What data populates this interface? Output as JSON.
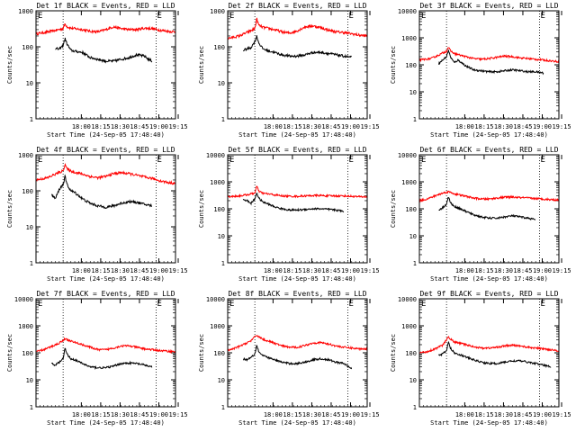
{
  "chart_data": [
    {
      "type": "line",
      "title": "Det 1f BLACK = Events, RED = LLD",
      "ylabel": "Counts/sec",
      "xlabel": "Start Time (24-Sep-05 17:48:40)",
      "yscale": "log",
      "ylim": [
        1,
        1000
      ],
      "yticks": [
        "1",
        "10",
        "100",
        "1000"
      ],
      "xticks": [
        "18:00",
        "18:15",
        "18:30",
        "18:45",
        "19:00",
        "19:15"
      ],
      "xlim": [
        -12,
        24
      ],
      "markers": [
        "E",
        "E"
      ],
      "vlines": [
        -5,
        19
      ],
      "series": [
        {
          "name": "LLD",
          "color": "#ff0000",
          "x": [
            -12,
            -8,
            -5,
            -4.5,
            -4,
            -3,
            0,
            2,
            4,
            6,
            8,
            10,
            12,
            14,
            16,
            18,
            20,
            22,
            24
          ],
          "values": [
            230,
            270,
            320,
            440,
            360,
            330,
            300,
            270,
            260,
            300,
            360,
            320,
            300,
            300,
            330,
            320,
            290,
            270,
            260
          ]
        },
        {
          "name": "Events",
          "color": "#000000",
          "x": [
            -7,
            -6,
            -5,
            -4.5,
            -4,
            -3,
            -2,
            0,
            2,
            4,
            6,
            8,
            10,
            12,
            14,
            16,
            17,
            18
          ],
          "values": [
            90,
            85,
            110,
            170,
            120,
            80,
            75,
            70,
            50,
            45,
            40,
            40,
            45,
            50,
            60,
            55,
            45,
            40
          ]
        }
      ]
    },
    {
      "type": "line",
      "title": "Det 2f BLACK = Events, RED = LLD",
      "ylabel": "Counts/sec",
      "xlabel": "Start Time (24-Sep-05 17:48:40)",
      "yscale": "log",
      "ylim": [
        1,
        1000
      ],
      "yticks": [
        "1",
        "10",
        "100",
        "1000"
      ],
      "xticks": [
        "18:00",
        "18:15",
        "18:30",
        "18:45",
        "19:00",
        "19:15"
      ],
      "xlim": [
        -12,
        24
      ],
      "markers": [
        "E",
        "E"
      ],
      "vlines": [
        -5,
        19
      ],
      "series": [
        {
          "name": "LLD",
          "color": "#ff0000",
          "x": [
            -12,
            -9,
            -6,
            -5,
            -4.5,
            -4,
            -3,
            0,
            2,
            4,
            6,
            8,
            10,
            12,
            14,
            16,
            18,
            20,
            22,
            24
          ],
          "values": [
            170,
            200,
            280,
            320,
            600,
            400,
            350,
            300,
            260,
            240,
            280,
            360,
            380,
            340,
            290,
            260,
            250,
            230,
            210,
            200
          ]
        },
        {
          "name": "Events",
          "color": "#000000",
          "x": [
            -8,
            -6,
            -5,
            -4.5,
            -4,
            -3,
            -2,
            0,
            2,
            4,
            6,
            8,
            10,
            12,
            14,
            16,
            18,
            20
          ],
          "values": [
            80,
            95,
            140,
            200,
            130,
            90,
            80,
            70,
            60,
            55,
            55,
            60,
            70,
            70,
            65,
            60,
            55,
            50
          ]
        }
      ]
    },
    {
      "type": "line",
      "title": "Det 3f BLACK = Events, RED = LLD",
      "ylabel": "Counts/sec",
      "xlabel": "Start Time (24-Sep-05 17:48:40)",
      "yscale": "log",
      "ylim": [
        1,
        10000
      ],
      "yticks": [
        "1",
        "10",
        "100",
        "1000",
        "10000"
      ],
      "xticks": [
        "18:00",
        "18:15",
        "18:30",
        "18:45",
        "19:00",
        "19:15"
      ],
      "xlim": [
        -12,
        24
      ],
      "markers": [
        "E",
        "E"
      ],
      "vlines": [
        -5,
        19
      ],
      "series": [
        {
          "name": "LLD",
          "color": "#ff0000",
          "x": [
            -12,
            -9,
            -7,
            -5,
            -4.5,
            -4,
            -3,
            0,
            2,
            4,
            6,
            8,
            10,
            12,
            14,
            16,
            18,
            20,
            22,
            24
          ],
          "values": [
            150,
            170,
            230,
            320,
            450,
            330,
            260,
            200,
            170,
            160,
            170,
            190,
            210,
            200,
            180,
            170,
            160,
            150,
            140,
            130
          ]
        },
        {
          "name": "Events",
          "color": "#000000",
          "x": [
            -7,
            -6,
            -5,
            -4.5,
            -4,
            -3,
            -2,
            0,
            2,
            4,
            6,
            8,
            10,
            12,
            14,
            16,
            18,
            20
          ],
          "values": [
            110,
            150,
            200,
            350,
            200,
            120,
            150,
            90,
            65,
            60,
            55,
            55,
            60,
            65,
            60,
            55,
            55,
            50
          ]
        }
      ]
    },
    {
      "type": "line",
      "title": "Det 4f BLACK = Events, RED = LLD",
      "ylabel": "Counts/sec",
      "xlabel": "Start Time (24-Sep-05 17:48:40)",
      "yscale": "log",
      "ylim": [
        1,
        1000
      ],
      "yticks": [
        "1",
        "10",
        "100",
        "1000"
      ],
      "xticks": [
        "18:00",
        "18:15",
        "18:30",
        "18:45",
        "19:00",
        "19:15"
      ],
      "xlim": [
        -12,
        24
      ],
      "markers": [
        "E",
        "E"
      ],
      "vlines": [
        -5,
        19
      ],
      "series": [
        {
          "name": "LLD",
          "color": "#ff0000",
          "x": [
            -12,
            -9,
            -7,
            -5,
            -4.5,
            -4,
            -3,
            0,
            2,
            4,
            6,
            8,
            10,
            12,
            14,
            16,
            18,
            20,
            22,
            24
          ],
          "values": [
            200,
            230,
            290,
            360,
            560,
            400,
            350,
            290,
            250,
            230,
            250,
            300,
            320,
            300,
            270,
            240,
            220,
            190,
            170,
            160
          ]
        },
        {
          "name": "Events",
          "color": "#000000",
          "x": [
            -8,
            -7,
            -6,
            -5,
            -4.5,
            -4,
            -3,
            -2,
            0,
            2,
            4,
            6,
            8,
            10,
            12,
            14,
            16,
            18
          ],
          "values": [
            80,
            60,
            110,
            150,
            250,
            150,
            100,
            90,
            60,
            45,
            38,
            35,
            38,
            45,
            50,
            48,
            42,
            38
          ]
        }
      ]
    },
    {
      "type": "line",
      "title": "Det 5f BLACK = Events, RED = LLD",
      "ylabel": "Counts/sec",
      "xlabel": "Start Time (24-Sep-05 17:48:40)",
      "yscale": "log",
      "ylim": [
        1,
        10000
      ],
      "yticks": [
        "1",
        "10",
        "100",
        "1000",
        "10000"
      ],
      "xticks": [
        "18:00",
        "18:15",
        "18:30",
        "18:45",
        "19:00",
        "19:15"
      ],
      "xlim": [
        -12,
        24
      ],
      "markers": [
        "E",
        "E"
      ],
      "vlines": [
        -5,
        19
      ],
      "series": [
        {
          "name": "LLD",
          "color": "#ff0000",
          "x": [
            -12,
            -9,
            -7,
            -5,
            -4.5,
            -4,
            -3,
            0,
            2,
            4,
            6,
            8,
            10,
            12,
            14,
            16,
            18,
            20,
            22,
            24
          ],
          "values": [
            280,
            300,
            330,
            380,
            700,
            450,
            380,
            330,
            300,
            290,
            290,
            300,
            310,
            310,
            300,
            300,
            300,
            290,
            280,
            280
          ]
        },
        {
          "name": "Events",
          "color": "#000000",
          "x": [
            -8,
            -7,
            -6,
            -5,
            -4.5,
            -4,
            -3,
            -2,
            0,
            2,
            4,
            6,
            8,
            10,
            12,
            14,
            16,
            18
          ],
          "values": [
            220,
            200,
            160,
            230,
            400,
            250,
            180,
            160,
            120,
            100,
            90,
            90,
            95,
            100,
            100,
            95,
            90,
            80
          ]
        }
      ]
    },
    {
      "type": "line",
      "title": "Det 6f BLACK = Events, RED = LLD",
      "ylabel": "Counts/sec",
      "xlabel": "Start Time (24-Sep-05 17:48:40)",
      "yscale": "log",
      "ylim": [
        1,
        10000
      ],
      "yticks": [
        "1",
        "10",
        "100",
        "1000",
        "10000"
      ],
      "xticks": [
        "18:00",
        "18:15",
        "18:30",
        "18:45",
        "19:00",
        "19:15"
      ],
      "xlim": [
        -12,
        24
      ],
      "markers": [
        "E",
        "E"
      ],
      "vlines": [
        -5,
        19
      ],
      "series": [
        {
          "name": "LLD",
          "color": "#ff0000",
          "x": [
            -12,
            -10,
            -8,
            -6,
            -4.5,
            -3,
            0,
            2,
            4,
            6,
            8,
            10,
            12,
            14,
            16,
            18,
            20,
            22,
            24
          ],
          "values": [
            200,
            230,
            300,
            380,
            430,
            360,
            290,
            250,
            230,
            230,
            250,
            270,
            270,
            260,
            250,
            240,
            230,
            220,
            210
          ]
        },
        {
          "name": "Events",
          "color": "#000000",
          "x": [
            -7,
            -6,
            -5,
            -4.5,
            -4,
            -3,
            -2,
            0,
            2,
            4,
            6,
            8,
            10,
            12,
            14,
            16,
            18
          ],
          "values": [
            90,
            110,
            150,
            280,
            170,
            120,
            110,
            80,
            60,
            50,
            45,
            45,
            50,
            55,
            50,
            45,
            40
          ]
        }
      ]
    },
    {
      "type": "line",
      "title": "Det 7f BLACK = Events, RED = LLD",
      "ylabel": "Counts/sec",
      "xlabel": "Start Time (24-Sep-05 17:48:40)",
      "yscale": "log",
      "ylim": [
        1,
        10000
      ],
      "yticks": [
        "1",
        "10",
        "100",
        "1000",
        "10000"
      ],
      "xticks": [
        "18:00",
        "18:15",
        "18:30",
        "18:45",
        "19:00",
        "19:15"
      ],
      "xlim": [
        -12,
        24
      ],
      "markers": [
        "E",
        "E"
      ],
      "vlines": [
        -5,
        19
      ],
      "series": [
        {
          "name": "LLD",
          "color": "#ff0000",
          "x": [
            -12,
            -10,
            -8,
            -6,
            -4.5,
            -3,
            0,
            2,
            4,
            6,
            8,
            10,
            12,
            14,
            16,
            18,
            20,
            22,
            24
          ],
          "values": [
            110,
            130,
            170,
            230,
            330,
            270,
            200,
            160,
            130,
            130,
            150,
            180,
            180,
            160,
            140,
            130,
            120,
            115,
            110
          ]
        },
        {
          "name": "Events",
          "color": "#000000",
          "x": [
            -8,
            -7,
            -6,
            -5,
            -4.5,
            -4,
            -3,
            -2,
            0,
            2,
            4,
            6,
            8,
            10,
            12,
            14,
            16,
            18
          ],
          "values": [
            40,
            35,
            45,
            60,
            150,
            90,
            60,
            55,
            40,
            30,
            28,
            28,
            32,
            40,
            42,
            40,
            35,
            30
          ]
        }
      ]
    },
    {
      "type": "line",
      "title": "Det 8f BLACK = Events, RED = LLD",
      "ylabel": "Counts/sec",
      "xlabel": "Start Time (24-Sep-05 17:48:40)",
      "yscale": "log",
      "ylim": [
        1,
        10000
      ],
      "yticks": [
        "1",
        "10",
        "100",
        "1000",
        "10000"
      ],
      "xticks": [
        "18:00",
        "18:15",
        "18:30",
        "18:45",
        "19:00",
        "19:15"
      ],
      "xlim": [
        -12,
        24
      ],
      "markers": [
        "E",
        "E"
      ],
      "vlines": [
        -5,
        19
      ],
      "series": [
        {
          "name": "LLD",
          "color": "#ff0000",
          "x": [
            -12,
            -10,
            -8,
            -6,
            -4.5,
            -3,
            0,
            2,
            4,
            6,
            8,
            10,
            12,
            14,
            16,
            18,
            20,
            22,
            24
          ],
          "values": [
            120,
            150,
            200,
            280,
            450,
            320,
            230,
            180,
            160,
            160,
            190,
            230,
            240,
            210,
            180,
            160,
            150,
            140,
            140
          ]
        },
        {
          "name": "Events",
          "color": "#000000",
          "x": [
            -8,
            -7,
            -6,
            -5,
            -4.5,
            -4,
            -3,
            -2,
            0,
            2,
            4,
            6,
            8,
            10,
            12,
            14,
            16,
            18,
            20
          ],
          "values": [
            60,
            55,
            70,
            90,
            200,
            110,
            80,
            70,
            55,
            45,
            40,
            40,
            45,
            55,
            60,
            55,
            45,
            40,
            25
          ]
        }
      ]
    },
    {
      "type": "line",
      "title": "Det 9f BLACK = Events, RED = LLD",
      "ylabel": "Counts/sec",
      "xlabel": "Start Time (24-Sep-05 17:48:40)",
      "yscale": "log",
      "ylim": [
        1,
        10000
      ],
      "yticks": [
        "1",
        "10",
        "100",
        "1000",
        "10000"
      ],
      "xticks": [
        "18:00",
        "18:15",
        "18:30",
        "18:45",
        "19:00",
        "19:15"
      ],
      "xlim": [
        -12,
        24
      ],
      "markers": [
        "E",
        "E"
      ],
      "vlines": [
        -5,
        19
      ],
      "series": [
        {
          "name": "LLD",
          "color": "#ff0000",
          "x": [
            -12,
            -10,
            -8,
            -6,
            -4.5,
            -3,
            0,
            2,
            4,
            6,
            8,
            10,
            12,
            14,
            16,
            18,
            20,
            22,
            24
          ],
          "values": [
            100,
            110,
            140,
            190,
            380,
            250,
            200,
            170,
            150,
            150,
            160,
            180,
            190,
            180,
            160,
            150,
            140,
            130,
            120
          ]
        },
        {
          "name": "Events",
          "color": "#000000",
          "x": [
            -7,
            -6,
            -5,
            -4.5,
            -4,
            -3,
            -2,
            0,
            2,
            4,
            6,
            8,
            10,
            12,
            14,
            16,
            18,
            20,
            22
          ],
          "values": [
            80,
            90,
            120,
            250,
            150,
            100,
            90,
            70,
            55,
            45,
            40,
            40,
            45,
            50,
            50,
            45,
            40,
            35,
            30
          ]
        }
      ]
    }
  ]
}
